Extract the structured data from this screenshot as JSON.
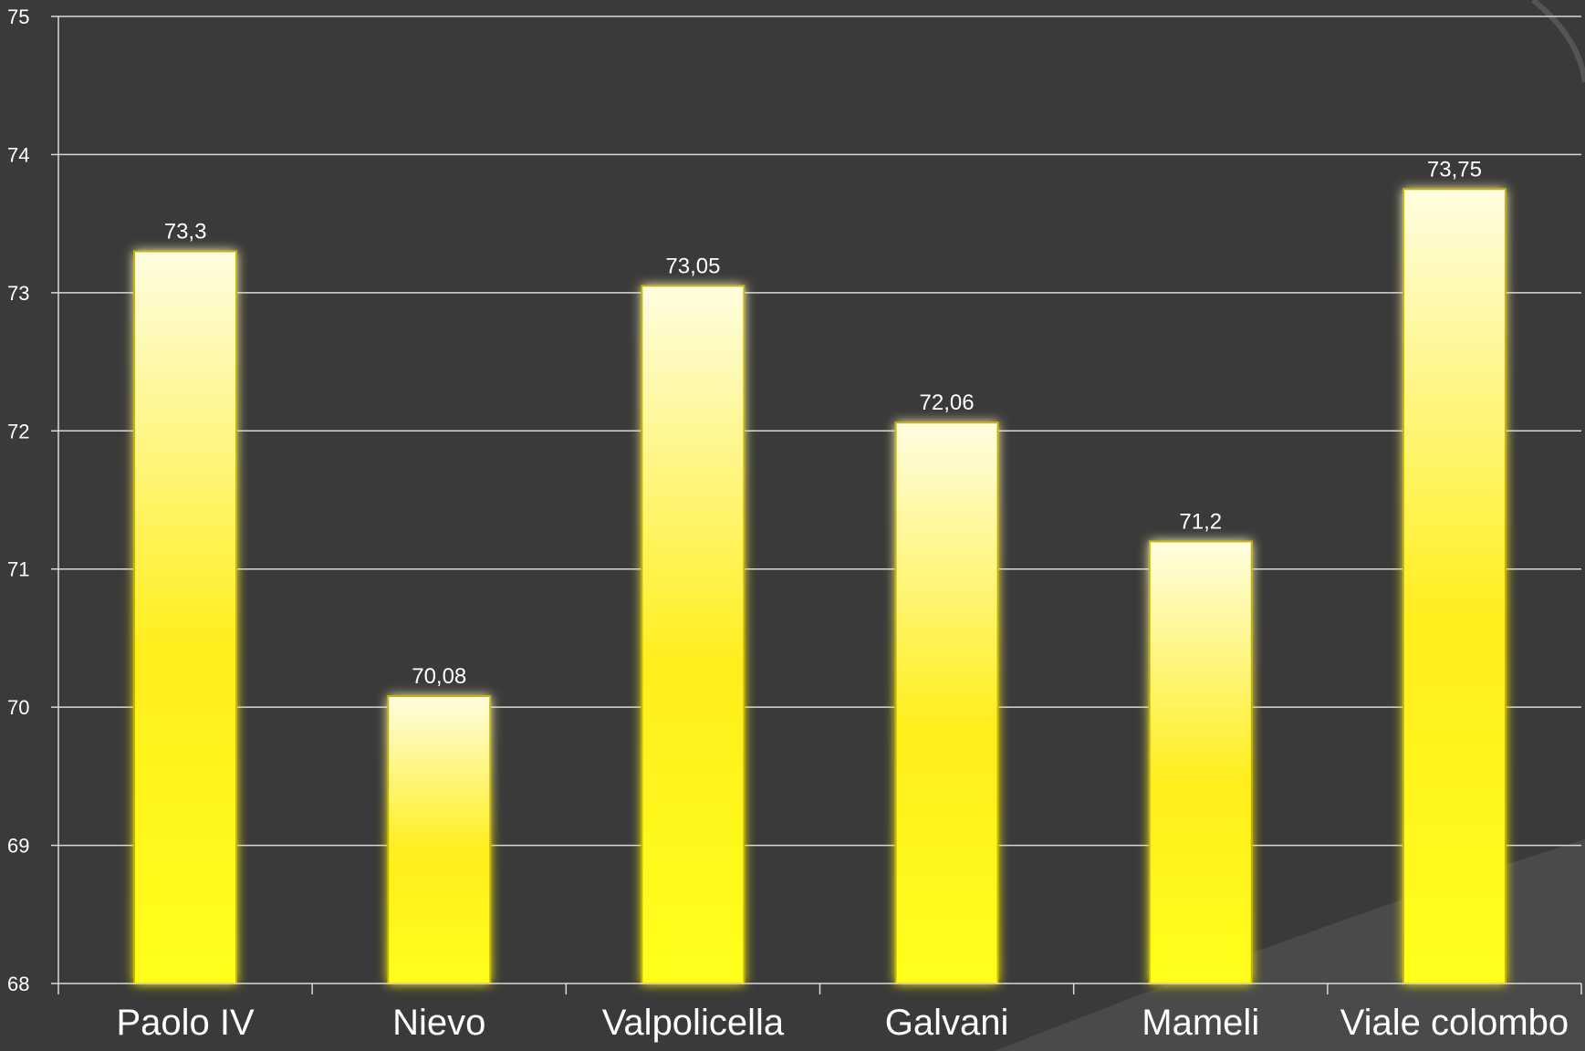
{
  "chart_data": {
    "type": "bar",
    "title": "",
    "xlabel": "",
    "ylabel": "",
    "categories": [
      "Paolo IV",
      "Nievo",
      "Valpolicella",
      "Galvani",
      "Mameli",
      "Viale colombo"
    ],
    "values": [
      73.3,
      70.08,
      73.05,
      72.06,
      71.2,
      73.75
    ],
    "value_labels": [
      "73,3",
      "70,08",
      "73,05",
      "72,06",
      "71,2",
      "73,75"
    ],
    "ylim": [
      68,
      75
    ],
    "yticks": [
      "68",
      "69",
      "70",
      "71",
      "72",
      "73",
      "74",
      "75"
    ],
    "grid": true,
    "legend": "none",
    "colors": {
      "background": "#3a3a3a",
      "gridline": "#d9d9d9",
      "bar_top": "#fffde0",
      "bar_mid": "#ffee1a",
      "bar_bottom": "#ffff1a",
      "text": "#ffffff"
    }
  }
}
